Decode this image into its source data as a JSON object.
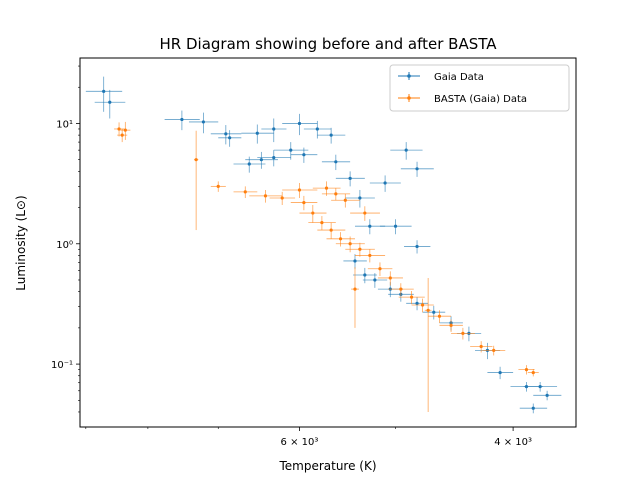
{
  "chart_data": {
    "type": "scatter",
    "title": "HR Diagram showing before and after BASTA",
    "xlabel": "Temperature (K)",
    "ylabel": "Luminosity (L⊙)",
    "x_scale": "log",
    "y_scale": "log",
    "x_inverted": true,
    "xlim": [
      9100,
      3550
    ],
    "ylim": [
      0.03,
      35
    ],
    "x_ticks": [
      {
        "value": 6000,
        "label": "6 × 10³"
      },
      {
        "value": 4000,
        "label": "4 × 10³"
      }
    ],
    "x_minor_ticks": [
      9000,
      8000,
      7000,
      5000
    ],
    "y_ticks": [
      {
        "value": 0.1,
        "label": "10⁻¹"
      },
      {
        "value": 1,
        "label": "10⁰"
      },
      {
        "value": 10,
        "label": "10¹"
      }
    ],
    "grid": false,
    "legend_position": "top-right",
    "series": [
      {
        "name": "Gaia Data",
        "color": "#1f77b4",
        "points": [
          {
            "x": 8700,
            "y": 18.5,
            "xerr": 300,
            "yerr": 6
          },
          {
            "x": 8600,
            "y": 15.0,
            "xerr": 250,
            "yerr": 4
          },
          {
            "x": 7500,
            "y": 10.8,
            "xerr": 250,
            "yerr": 2
          },
          {
            "x": 7200,
            "y": 10.3,
            "xerr": 200,
            "yerr": 2
          },
          {
            "x": 6900,
            "y": 8.2,
            "xerr": 200,
            "yerr": 1.5
          },
          {
            "x": 6850,
            "y": 7.6,
            "xerr": 150,
            "yerr": 1.2
          },
          {
            "x": 6500,
            "y": 8.3,
            "xerr": 200,
            "yerr": 1.5
          },
          {
            "x": 6300,
            "y": 9.0,
            "xerr": 150,
            "yerr": 2
          },
          {
            "x": 6000,
            "y": 10.0,
            "xerr": 200,
            "yerr": 2
          },
          {
            "x": 5800,
            "y": 9.0,
            "xerr": 150,
            "yerr": 1.5
          },
          {
            "x": 5650,
            "y": 8.0,
            "xerr": 150,
            "yerr": 1.2
          },
          {
            "x": 4900,
            "y": 6.0,
            "xerr": 150,
            "yerr": 1.0
          },
          {
            "x": 5100,
            "y": 3.2,
            "xerr": 150,
            "yerr": 0.5
          },
          {
            "x": 4800,
            "y": 4.2,
            "xerr": 150,
            "yerr": 0.6
          },
          {
            "x": 6450,
            "y": 5.0,
            "xerr": 200,
            "yerr": 0.8
          },
          {
            "x": 6300,
            "y": 5.2,
            "xerr": 200,
            "yerr": 0.8
          },
          {
            "x": 6100,
            "y": 6.0,
            "xerr": 200,
            "yerr": 1.0
          },
          {
            "x": 5950,
            "y": 5.5,
            "xerr": 150,
            "yerr": 0.8
          },
          {
            "x": 6600,
            "y": 4.6,
            "xerr": 200,
            "yerr": 0.7
          },
          {
            "x": 5600,
            "y": 4.8,
            "xerr": 150,
            "yerr": 0.7
          },
          {
            "x": 5450,
            "y": 3.5,
            "xerr": 150,
            "yerr": 0.5
          },
          {
            "x": 5350,
            "y": 2.4,
            "xerr": 150,
            "yerr": 0.4
          },
          {
            "x": 5250,
            "y": 1.4,
            "xerr": 150,
            "yerr": 0.2
          },
          {
            "x": 5000,
            "y": 1.4,
            "xerr": 150,
            "yerr": 0.2
          },
          {
            "x": 4800,
            "y": 0.95,
            "xerr": 120,
            "yerr": 0.12
          },
          {
            "x": 5400,
            "y": 0.72,
            "xerr": 120,
            "yerr": 0.1
          },
          {
            "x": 5300,
            "y": 0.55,
            "xerr": 120,
            "yerr": 0.08
          },
          {
            "x": 5200,
            "y": 0.5,
            "xerr": 120,
            "yerr": 0.07
          },
          {
            "x": 5050,
            "y": 0.42,
            "xerr": 120,
            "yerr": 0.06
          },
          {
            "x": 4950,
            "y": 0.38,
            "xerr": 120,
            "yerr": 0.05
          },
          {
            "x": 4800,
            "y": 0.32,
            "xerr": 100,
            "yerr": 0.04
          },
          {
            "x": 4650,
            "y": 0.27,
            "xerr": 100,
            "yerr": 0.035
          },
          {
            "x": 4500,
            "y": 0.22,
            "xerr": 100,
            "yerr": 0.03
          },
          {
            "x": 4350,
            "y": 0.18,
            "xerr": 100,
            "yerr": 0.025
          },
          {
            "x": 4200,
            "y": 0.13,
            "xerr": 100,
            "yerr": 0.02
          },
          {
            "x": 4100,
            "y": 0.085,
            "xerr": 100,
            "yerr": 0.01
          },
          {
            "x": 3900,
            "y": 0.065,
            "xerr": 120,
            "yerr": 0.006
          },
          {
            "x": 3800,
            "y": 0.065,
            "xerr": 120,
            "yerr": 0.006
          },
          {
            "x": 3750,
            "y": 0.055,
            "xerr": 100,
            "yerr": 0.005
          },
          {
            "x": 3850,
            "y": 0.043,
            "xerr": 100,
            "yerr": 0.004
          }
        ]
      },
      {
        "name": "BASTA (Gaia) Data",
        "color": "#ff7f0e",
        "points": [
          {
            "x": 8450,
            "y": 9.0,
            "xerr": 80,
            "yerr": 1.2
          },
          {
            "x": 8400,
            "y": 8.0,
            "xerr": 80,
            "yerr": 1.0
          },
          {
            "x": 8350,
            "y": 8.8,
            "xerr": 80,
            "yerr": 1.5
          },
          {
            "x": 7300,
            "y": 5.0,
            "xerr": 30,
            "yerr": 3.7
          },
          {
            "x": 7000,
            "y": 3.0,
            "xerr": 100,
            "yerr": 0.3
          },
          {
            "x": 6650,
            "y": 2.7,
            "xerr": 150,
            "yerr": 0.3
          },
          {
            "x": 6400,
            "y": 2.5,
            "xerr": 200,
            "yerr": 0.3
          },
          {
            "x": 6200,
            "y": 2.4,
            "xerr": 150,
            "yerr": 0.3
          },
          {
            "x": 6000,
            "y": 2.8,
            "xerr": 200,
            "yerr": 0.4
          },
          {
            "x": 5950,
            "y": 2.2,
            "xerr": 150,
            "yerr": 0.3
          },
          {
            "x": 5850,
            "y": 1.8,
            "xerr": 150,
            "yerr": 0.3
          },
          {
            "x": 5750,
            "y": 1.5,
            "xerr": 150,
            "yerr": 0.2
          },
          {
            "x": 5650,
            "y": 1.3,
            "xerr": 150,
            "yerr": 0.2
          },
          {
            "x": 5550,
            "y": 1.1,
            "xerr": 150,
            "yerr": 0.15
          },
          {
            "x": 5450,
            "y": 1.0,
            "xerr": 150,
            "yerr": 0.15
          },
          {
            "x": 5350,
            "y": 0.9,
            "xerr": 150,
            "yerr": 0.12
          },
          {
            "x": 5250,
            "y": 0.8,
            "xerr": 150,
            "yerr": 0.1
          },
          {
            "x": 5400,
            "y": 0.42,
            "xerr": 40,
            "yerr": 0.22
          },
          {
            "x": 5150,
            "y": 0.62,
            "xerr": 120,
            "yerr": 0.08
          },
          {
            "x": 5050,
            "y": 0.52,
            "xerr": 120,
            "yerr": 0.07
          },
          {
            "x": 4950,
            "y": 0.42,
            "xerr": 120,
            "yerr": 0.05
          },
          {
            "x": 4850,
            "y": 0.36,
            "xerr": 120,
            "yerr": 0.045
          },
          {
            "x": 4750,
            "y": 0.31,
            "xerr": 100,
            "yerr": 0.04
          },
          {
            "x": 4700,
            "y": 0.28,
            "xerr": 30,
            "yerr": 0.24
          },
          {
            "x": 4600,
            "y": 0.25,
            "xerr": 100,
            "yerr": 0.03
          },
          {
            "x": 4500,
            "y": 0.21,
            "xerr": 100,
            "yerr": 0.025
          },
          {
            "x": 4400,
            "y": 0.18,
            "xerr": 100,
            "yerr": 0.02
          },
          {
            "x": 4250,
            "y": 0.14,
            "xerr": 90,
            "yerr": 0.015
          },
          {
            "x": 4150,
            "y": 0.13,
            "xerr": 90,
            "yerr": 0.012
          },
          {
            "x": 3900,
            "y": 0.09,
            "xerr": 60,
            "yerr": 0.008
          },
          {
            "x": 3850,
            "y": 0.085,
            "xerr": 40,
            "yerr": 0.006
          },
          {
            "x": 5700,
            "y": 2.9,
            "xerr": 150,
            "yerr": 0.4
          },
          {
            "x": 5500,
            "y": 2.3,
            "xerr": 150,
            "yerr": 0.3
          },
          {
            "x": 5300,
            "y": 1.8,
            "xerr": 150,
            "yerr": 0.25
          },
          {
            "x": 5600,
            "y": 2.6,
            "xerr": 150,
            "yerr": 0.3
          }
        ]
      }
    ]
  }
}
